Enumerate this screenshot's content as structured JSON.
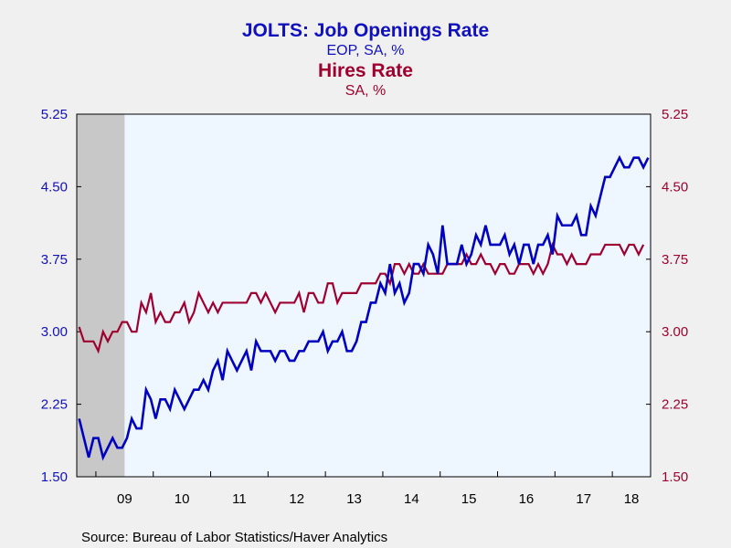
{
  "chart_data": {
    "type": "line",
    "title": "JOLTS: Job Openings Rate",
    "subtitle": "EOP, SA, %",
    "title2": "Hires Rate",
    "subtitle2": "SA, %",
    "source": "Source:  Bureau of Labor Statistics/Haver Analytics",
    "start": "2008-09",
    "ylim": [
      1.5,
      5.25
    ],
    "yticks": [
      "1.50",
      "2.25",
      "3.00",
      "3.75",
      "4.50",
      "5.25"
    ],
    "xticks": [
      "09",
      "10",
      "11",
      "12",
      "13",
      "14",
      "15",
      "16",
      "17",
      "18"
    ],
    "recession": [
      "2008-09",
      "2009-06"
    ],
    "grid": false,
    "colors": {
      "openings": "#0000c0",
      "hires": "#a00030",
      "axis": "#000000",
      "recession": "#c8c8c8",
      "plot_bg": "#eef6ff"
    },
    "series": [
      {
        "name": "Job Openings Rate",
        "axis": "left",
        "values": [
          2.1,
          1.9,
          1.7,
          1.9,
          1.9,
          1.7,
          1.8,
          1.9,
          1.8,
          1.8,
          1.9,
          2.1,
          2.0,
          2.0,
          2.4,
          2.3,
          2.1,
          2.3,
          2.3,
          2.2,
          2.4,
          2.3,
          2.2,
          2.3,
          2.4,
          2.4,
          2.5,
          2.4,
          2.6,
          2.7,
          2.5,
          2.8,
          2.7,
          2.6,
          2.7,
          2.8,
          2.6,
          2.9,
          2.8,
          2.8,
          2.8,
          2.7,
          2.8,
          2.8,
          2.7,
          2.7,
          2.8,
          2.8,
          2.9,
          2.9,
          2.9,
          3.0,
          2.8,
          2.9,
          2.9,
          3.0,
          2.8,
          2.8,
          2.9,
          3.1,
          3.1,
          3.3,
          3.3,
          3.5,
          3.4,
          3.7,
          3.4,
          3.5,
          3.3,
          3.4,
          3.7,
          3.7,
          3.6,
          3.9,
          3.8,
          3.6,
          4.1,
          3.7,
          3.7,
          3.7,
          3.9,
          3.7,
          3.8,
          4.0,
          3.9,
          4.1,
          3.9,
          3.9,
          3.9,
          4.0,
          3.8,
          3.9,
          3.7,
          3.9,
          3.9,
          3.7,
          3.9,
          3.9,
          4.0,
          3.8,
          4.2,
          4.1,
          4.1,
          4.1,
          4.2,
          4.0,
          4.0,
          4.3,
          4.2,
          4.4,
          4.6,
          4.6,
          4.7,
          4.8,
          4.7,
          4.7,
          4.8,
          4.8,
          4.7,
          4.8
        ]
      },
      {
        "name": "Hires Rate",
        "axis": "right",
        "values": [
          3.05,
          2.9,
          2.9,
          2.9,
          2.8,
          3.0,
          2.9,
          3.0,
          3.0,
          3.1,
          3.1,
          3.0,
          3.0,
          3.3,
          3.2,
          3.4,
          3.1,
          3.2,
          3.1,
          3.1,
          3.2,
          3.2,
          3.3,
          3.1,
          3.2,
          3.4,
          3.3,
          3.2,
          3.3,
          3.2,
          3.3,
          3.3,
          3.3,
          3.3,
          3.3,
          3.3,
          3.4,
          3.4,
          3.3,
          3.4,
          3.3,
          3.2,
          3.3,
          3.3,
          3.3,
          3.3,
          3.4,
          3.2,
          3.4,
          3.4,
          3.3,
          3.3,
          3.5,
          3.5,
          3.3,
          3.4,
          3.4,
          3.4,
          3.4,
          3.5,
          3.5,
          3.5,
          3.5,
          3.6,
          3.6,
          3.5,
          3.7,
          3.7,
          3.6,
          3.7,
          3.6,
          3.6,
          3.7,
          3.6,
          3.6,
          3.6,
          3.6,
          3.7,
          3.7,
          3.7,
          3.7,
          3.8,
          3.7,
          3.7,
          3.8,
          3.7,
          3.7,
          3.6,
          3.7,
          3.7,
          3.6,
          3.6,
          3.7,
          3.7,
          3.7,
          3.6,
          3.7,
          3.6,
          3.7,
          3.9,
          3.8,
          3.8,
          3.7,
          3.8,
          3.7,
          3.7,
          3.7,
          3.8,
          3.8,
          3.8,
          3.9,
          3.9,
          3.9,
          3.9,
          3.8,
          3.9,
          3.9,
          3.8,
          3.9
        ]
      }
    ]
  }
}
